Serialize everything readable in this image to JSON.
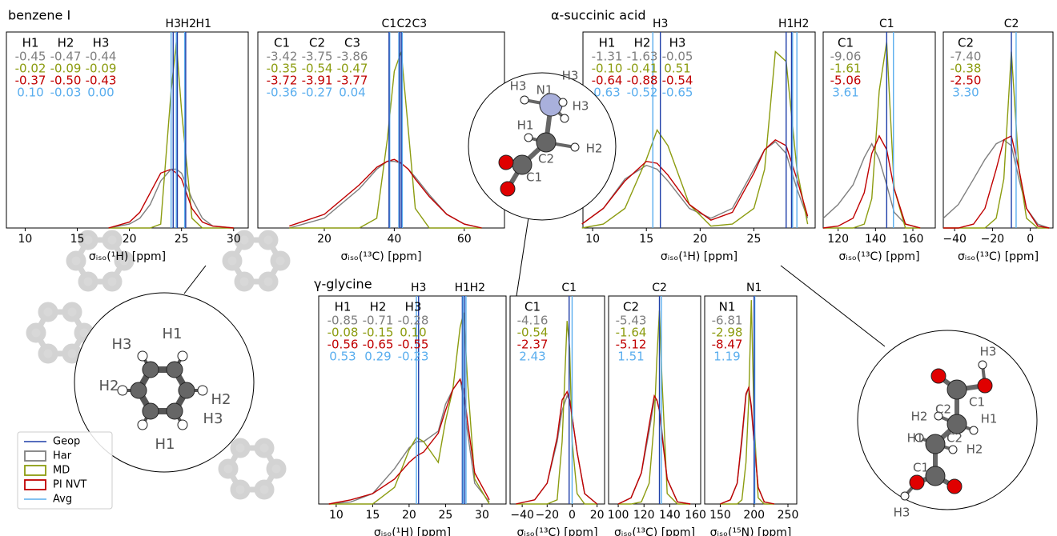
{
  "groups": [
    {
      "title": "benzene I"
    },
    {
      "title": "α-succinic acid"
    },
    {
      "title": "γ-glycine"
    }
  ],
  "legend": {
    "entries": [
      {
        "name": "Geop",
        "color": "#1f3fa8",
        "kind": "line"
      },
      {
        "name": "Har",
        "color": "#7f7f7f",
        "kind": "patch"
      },
      {
        "name": "MD",
        "color": "#8c9c10",
        "kind": "patch"
      },
      {
        "name": "PI NVT",
        "color": "#c00000",
        "kind": "patch"
      },
      {
        "name": "Avg",
        "color": "#5aaeee",
        "kind": "line"
      }
    ]
  },
  "molecules": {
    "glycine": [
      "H3",
      "N1",
      "H3",
      "H3",
      "H1",
      "C2",
      "H2",
      "C1"
    ],
    "benzene": [
      "H3",
      "H1",
      "H2",
      "H2",
      "H3",
      "H1"
    ],
    "succinic": [
      "H3",
      "C1",
      "H2",
      "C2",
      "H1",
      "H1",
      "C2",
      "H2",
      "C1",
      "H3"
    ]
  },
  "chart_data": [
    {
      "type": "line",
      "xlabel": "σᵢₛₒ(¹H) [ppm]",
      "xlim": [
        8.2,
        31.4
      ],
      "xticks": [
        10,
        15,
        20,
        25,
        30
      ],
      "ylim": [
        0,
        1
      ],
      "x": [
        18,
        20,
        21,
        22,
        23,
        24,
        24.5,
        25,
        26,
        27,
        28,
        30
      ],
      "series": [
        {
          "values": [
            0,
            0.02,
            0.05,
            0.12,
            0.24,
            0.3,
            0.3,
            0.28,
            0.15,
            0.05,
            0.01,
            0
          ]
        },
        {
          "values": [
            0,
            0,
            0,
            0,
            0.02,
            0.7,
            0.95,
            0.6,
            0.05,
            0,
            0,
            0
          ]
        },
        {
          "values": [
            0,
            0.03,
            0.08,
            0.18,
            0.28,
            0.3,
            0.28,
            0.25,
            0.1,
            0.03,
            0.01,
            0
          ]
        }
      ],
      "markers": [
        {
          "label": "H3",
          "geop": 24.2,
          "avg": 24.0
        },
        {
          "label": "H2",
          "geop": 24.6,
          "avg": 24.5
        },
        {
          "label": "H1",
          "geop": 25.4,
          "avg": 25.3
        }
      ],
      "stats": {
        "columns": [
          "H1",
          "H2",
          "H3"
        ],
        "rows": [
          [
            "-0.45",
            "-0.47",
            "-0.44"
          ],
          [
            "-0.02",
            "-0.09",
            "-0.09"
          ],
          [
            "-0.37",
            "-0.50",
            "-0.43"
          ],
          [
            "0.10",
            "-0.03",
            "0.00"
          ]
        ]
      }
    },
    {
      "type": "line",
      "xlabel": "σᵢₛₒ(¹³C) [ppm]",
      "xlim": [
        1,
        71.5
      ],
      "xticks": [
        20,
        40,
        60
      ],
      "ylim": [
        0,
        1
      ],
      "x": [
        10,
        20,
        30,
        35,
        38,
        40,
        42,
        44,
        46,
        50,
        55,
        60,
        65
      ],
      "series": [
        {
          "values": [
            0,
            0.05,
            0.2,
            0.3,
            0.34,
            0.34,
            0.33,
            0.3,
            0.26,
            0.17,
            0.07,
            0.02,
            0
          ]
        },
        {
          "values": [
            0,
            0,
            0,
            0.05,
            0.45,
            0.8,
            0.9,
            0.5,
            0.1,
            0,
            0,
            0,
            0
          ]
        },
        {
          "values": [
            0.01,
            0.07,
            0.22,
            0.31,
            0.34,
            0.35,
            0.33,
            0.3,
            0.25,
            0.16,
            0.07,
            0.02,
            0
          ]
        }
      ],
      "markers": [
        {
          "label": "C1",
          "geop": 38.5,
          "avg": 38.7
        },
        {
          "label": "C2",
          "geop": 41.5,
          "avg": 41.3
        },
        {
          "label": "C3",
          "geop": 42.0,
          "avg": 42.3
        }
      ],
      "stats": {
        "columns": [
          "C1",
          "C2",
          "C3"
        ],
        "rows": [
          [
            "-3.42",
            "-3.75",
            "-3.86"
          ],
          [
            "-0.35",
            "-0.54",
            "-0.47"
          ],
          [
            "-3.72",
            "-3.91",
            "-3.77"
          ],
          [
            "-0.36",
            "-0.27",
            "0.04"
          ]
        ]
      }
    },
    {
      "type": "line",
      "xlabel": "σᵢₛₒ(¹H) [ppm]",
      "xlim": [
        9.1,
        30.7
      ],
      "xticks": [
        10,
        15,
        20,
        25
      ],
      "ylim": [
        0,
        1
      ],
      "x": [
        9,
        11,
        13,
        15,
        16,
        17,
        19,
        21,
        23,
        25,
        26,
        27,
        28,
        29,
        30
      ],
      "series": [
        {
          "values": [
            0.02,
            0.1,
            0.25,
            0.32,
            0.3,
            0.24,
            0.1,
            0.05,
            0.1,
            0.3,
            0.4,
            0.44,
            0.38,
            0.2,
            0.05
          ]
        },
        {
          "values": [
            0,
            0.02,
            0.1,
            0.35,
            0.5,
            0.42,
            0.12,
            0.01,
            0.02,
            0.1,
            0.3,
            0.9,
            0.85,
            0.3,
            0.02
          ]
        },
        {
          "values": [
            0.02,
            0.1,
            0.24,
            0.34,
            0.33,
            0.27,
            0.12,
            0.04,
            0.08,
            0.28,
            0.4,
            0.45,
            0.42,
            0.25,
            0.06
          ]
        }
      ],
      "markers": [
        {
          "label": "H3",
          "geop": 16.3,
          "avg": 15.6
        },
        {
          "label": "H1",
          "geop": 28.0,
          "avg": 28.6
        },
        {
          "label": "H2",
          "geop": 28.5,
          "avg": 29.0
        }
      ],
      "stats": {
        "columns": [
          "H1",
          "H2",
          "H3"
        ],
        "rows": [
          [
            "-1.31",
            "-1.63",
            "-0.05"
          ],
          [
            "-0.10",
            "-0.41",
            "0.51"
          ],
          [
            "-0.64",
            "-0.88",
            "-0.54"
          ],
          [
            "0.63",
            "-0.52",
            "-0.65"
          ]
        ]
      }
    },
    {
      "type": "line",
      "xlabel": "σᵢₛₒ(¹³C) [ppm]",
      "xlim": [
        112,
        172
      ],
      "xticks": [
        120,
        140,
        160
      ],
      "ylim": [
        0,
        1
      ],
      "x": [
        112,
        120,
        128,
        134,
        138,
        142,
        146,
        150,
        156,
        164
      ],
      "series": [
        {
          "values": [
            0.05,
            0.12,
            0.22,
            0.36,
            0.43,
            0.35,
            0.22,
            0.08,
            0.02,
            0
          ]
        },
        {
          "values": [
            0,
            0,
            0,
            0.02,
            0.15,
            0.7,
            0.95,
            0.2,
            0,
            0
          ]
        },
        {
          "values": [
            0,
            0.01,
            0.05,
            0.18,
            0.38,
            0.47,
            0.4,
            0.2,
            0.02,
            0
          ]
        }
      ],
      "markers": [
        {
          "label": "C1",
          "geop": 146,
          "avg": 149.6
        }
      ],
      "stats": {
        "columns": [
          "C1"
        ],
        "rows": [
          [
            "-9.06"
          ],
          [
            "-1.61"
          ],
          [
            "-5.06"
          ],
          [
            "3.61"
          ]
        ]
      }
    },
    {
      "type": "line",
      "xlabel": "σᵢₛₒ(¹³C) [ppm]",
      "xlim": [
        -46,
        12
      ],
      "xticks": [
        {
          "value": -40,
          "label": "−40"
        },
        {
          "value": -20,
          "label": "−20"
        },
        0
      ],
      "ylim": [
        0,
        1
      ],
      "x": [
        -46,
        -38,
        -30,
        -24,
        -18,
        -14,
        -10,
        -6,
        -2,
        4,
        10
      ],
      "series": [
        {
          "values": [
            0.05,
            0.12,
            0.25,
            0.35,
            0.43,
            0.45,
            0.42,
            0.25,
            0.1,
            0.02,
            0
          ]
        },
        {
          "values": [
            0,
            0,
            0,
            0,
            0.05,
            0.25,
            0.9,
            0.3,
            0.05,
            0,
            0
          ]
        },
        {
          "values": [
            0,
            0,
            0.02,
            0.1,
            0.3,
            0.45,
            0.47,
            0.3,
            0.1,
            0.01,
            0
          ]
        }
      ],
      "markers": [
        {
          "label": "C2",
          "geop": -10,
          "avg": -7.5
        }
      ],
      "stats": {
        "columns": [
          "C2"
        ],
        "rows": [
          [
            "-7.40"
          ],
          [
            "-0.38"
          ],
          [
            "-2.50"
          ],
          [
            "3.30"
          ]
        ]
      }
    },
    {
      "type": "line",
      "xlabel": "σᵢₛₒ(¹H) [ppm]",
      "xlim": [
        7.6,
        33.3
      ],
      "xticks": [
        10,
        15,
        20,
        25,
        30
      ],
      "ylim": [
        0,
        1
      ],
      "x": [
        9,
        12,
        15,
        18,
        20,
        21,
        22,
        24,
        25,
        26,
        27,
        27.5,
        28,
        29,
        31
      ],
      "series": [
        {
          "values": [
            0,
            0.01,
            0.05,
            0.17,
            0.27,
            0.3,
            0.3,
            0.35,
            0.48,
            0.55,
            0.6,
            0.5,
            0.35,
            0.1,
            0.01
          ]
        },
        {
          "values": [
            0,
            0,
            0,
            0.08,
            0.26,
            0.32,
            0.3,
            0.2,
            0.4,
            0.55,
            0.85,
            0.92,
            0.6,
            0.12,
            0
          ]
        },
        {
          "values": [
            0,
            0.02,
            0.05,
            0.12,
            0.2,
            0.23,
            0.25,
            0.34,
            0.45,
            0.55,
            0.6,
            0.55,
            0.4,
            0.15,
            0.02
          ]
        }
      ],
      "markers": [
        {
          "label": "H3",
          "geop": 21.3,
          "avg": 21.0
        },
        {
          "label": "H1",
          "geop": 27.3,
          "avg": 27.8
        },
        {
          "label": "H2",
          "geop": 27.6,
          "avg": 27.4
        }
      ],
      "stats": {
        "columns": [
          "H1",
          "H2",
          "H3"
        ],
        "rows": [
          [
            "-0.85",
            "-0.71",
            "-0.28"
          ],
          [
            "-0.08",
            "-0.15",
            "0.10"
          ],
          [
            "-0.56",
            "-0.65",
            "-0.55"
          ],
          [
            "0.53",
            "0.29",
            "-0.23"
          ]
        ]
      }
    },
    {
      "type": "line",
      "xlabel": "σᵢₛₒ(¹³C) [ppm]",
      "xlim": [
        -49.7,
        26
      ],
      "xticks": [
        {
          "value": -40,
          "label": "−40"
        },
        {
          "value": -20,
          "label": "−20"
        },
        0,
        20
      ],
      "ylim": [
        0,
        1
      ],
      "x": [
        -45,
        -30,
        -20,
        -12,
        -8,
        -4,
        -2,
        0,
        4,
        10,
        20
      ],
      "series": [
        {
          "values": [
            0,
            0.02,
            0.1,
            0.3,
            0.45,
            0.52,
            0.5,
            0.42,
            0.25,
            0.05,
            0
          ]
        },
        {
          "values": [
            0,
            0,
            0,
            0.02,
            0.3,
            0.88,
            0.75,
            0.3,
            0.05,
            0,
            0
          ]
        },
        {
          "values": [
            0,
            0.02,
            0.1,
            0.32,
            0.5,
            0.54,
            0.5,
            0.42,
            0.25,
            0.05,
            0
          ]
        }
      ],
      "markers": [
        {
          "label": "C1",
          "geop": -2.4,
          "avg": 0
        }
      ],
      "stats": {
        "columns": [
          "C1"
        ],
        "rows": [
          [
            "-4.16"
          ],
          [
            "-0.54"
          ],
          [
            "-2.37"
          ],
          [
            "2.43"
          ]
        ]
      }
    },
    {
      "type": "line",
      "xlabel": "σᵢₛₒ(¹³C) [ppm]",
      "xlim": [
        92.5,
        164
      ],
      "xticks": [
        100,
        120,
        140,
        160
      ],
      "ylim": [
        0,
        1
      ],
      "x": [
        100,
        110,
        118,
        124,
        128,
        130,
        132,
        134,
        138,
        146,
        156
      ],
      "series": [
        {
          "values": [
            0,
            0.03,
            0.15,
            0.35,
            0.5,
            0.5,
            0.45,
            0.35,
            0.12,
            0.01,
            0
          ]
        },
        {
          "values": [
            0,
            0,
            0.01,
            0.1,
            0.4,
            0.7,
            0.93,
            0.6,
            0.05,
            0,
            0
          ]
        },
        {
          "values": [
            0,
            0.03,
            0.15,
            0.38,
            0.52,
            0.5,
            0.45,
            0.33,
            0.12,
            0.01,
            0
          ]
        }
      ],
      "markers": [
        {
          "label": "C2",
          "geop": 132,
          "avg": 133.5
        }
      ],
      "stats": {
        "columns": [
          "C2"
        ],
        "rows": [
          [
            "-5.43"
          ],
          [
            "-1.64"
          ],
          [
            "-5.12"
          ],
          [
            "1.51"
          ]
        ]
      }
    },
    {
      "type": "line",
      "xlabel": "σᵢₛₒ(¹⁵N) [ppm]",
      "xlim": [
        127,
        263
      ],
      "xticks": [
        150,
        200,
        250
      ],
      "ylim": [
        0,
        1
      ],
      "x": [
        150,
        165,
        175,
        182,
        188,
        192,
        196,
        200,
        206,
        215,
        230
      ],
      "series": [
        {
          "values": [
            0,
            0.02,
            0.1,
            0.3,
            0.52,
            0.56,
            0.45,
            0.3,
            0.08,
            0.01,
            0
          ]
        },
        {
          "values": [
            0,
            0,
            0,
            0.02,
            0.2,
            0.5,
            0.98,
            0.4,
            0.03,
            0,
            0
          ]
        },
        {
          "values": [
            0,
            0.02,
            0.1,
            0.32,
            0.53,
            0.56,
            0.47,
            0.3,
            0.08,
            0.01,
            0
          ]
        }
      ],
      "markers": [
        {
          "label": "N1",
          "geop": 200,
          "avg": 201
        }
      ],
      "stats": {
        "columns": [
          "N1"
        ],
        "rows": [
          [
            "-6.81"
          ],
          [
            "-2.98"
          ],
          [
            "-8.47"
          ],
          [
            "1.19"
          ]
        ]
      }
    }
  ]
}
